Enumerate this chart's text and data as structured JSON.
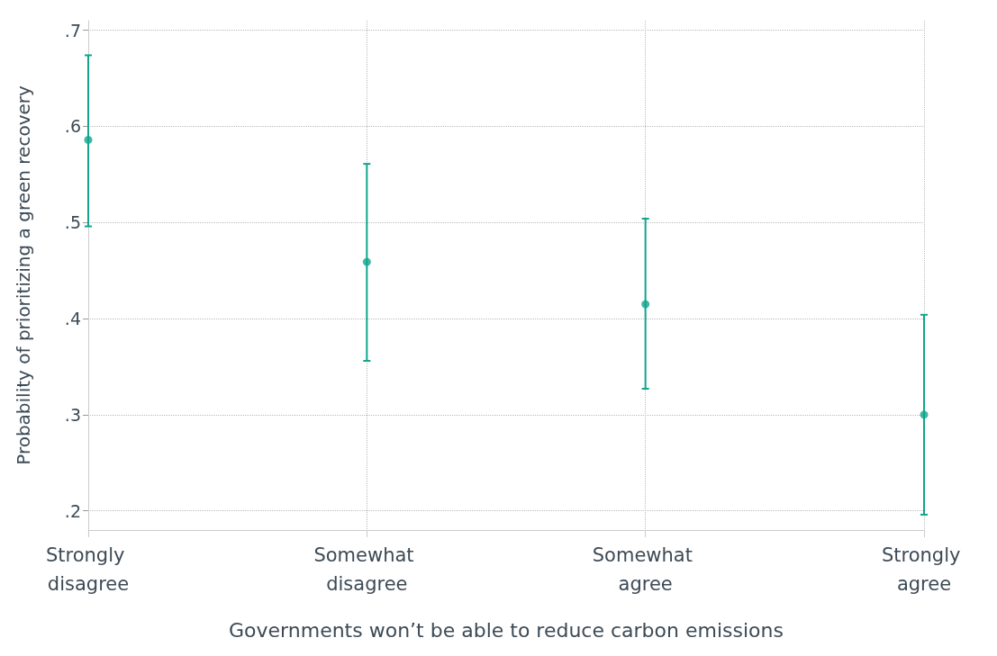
{
  "chart_data": {
    "type": "scatter",
    "xlabel": "Governments won’t be able to reduce carbon emissions",
    "ylabel": "Probability of prioritizing a green recovery",
    "categories": [
      "Strongly disagree",
      "Somewhat disagree",
      "Somewhat agree",
      "Strongly agree"
    ],
    "values": [
      0.586,
      0.459,
      0.415,
      0.3
    ],
    "errors": [
      [
        0.496,
        0.674
      ],
      [
        0.356,
        0.561
      ],
      [
        0.327,
        0.504
      ],
      [
        0.196,
        0.404
      ]
    ],
    "color": "#10a58c",
    "marker": "circle",
    "grid": true,
    "ylim": [
      0.18,
      0.71
    ],
    "yticks": [
      {
        "value": 0.2,
        "label": ".2"
      },
      {
        "value": 0.3,
        "label": ".3"
      },
      {
        "value": 0.4,
        "label": ".4"
      },
      {
        "value": 0.5,
        "label": ".5"
      },
      {
        "value": 0.6,
        "label": ".6"
      },
      {
        "value": 0.7,
        "label": ".7"
      }
    ]
  }
}
